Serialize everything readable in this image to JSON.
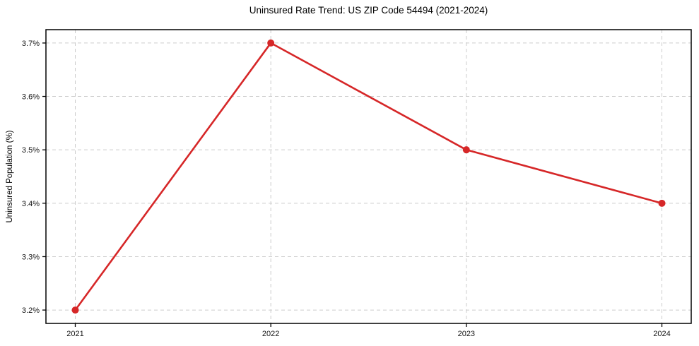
{
  "chart_data": {
    "type": "line",
    "title": "Uninsured Rate Trend: US ZIP Code 54494 (2021-2024)",
    "xlabel": "",
    "ylabel": "Uninsured Population (%)",
    "x": [
      2021,
      2022,
      2023,
      2024
    ],
    "values": [
      3.2,
      3.7,
      3.5,
      3.4
    ],
    "xtick_labels": [
      "2021",
      "2022",
      "2023",
      "2024"
    ],
    "ytick_values": [
      3.2,
      3.3,
      3.4,
      3.5,
      3.6,
      3.7
    ],
    "ytick_labels": [
      "3.2%",
      "3.3%",
      "3.4%",
      "3.5%",
      "3.6%",
      "3.7%"
    ],
    "xlim": [
      2020.85,
      2024.15
    ],
    "ylim": [
      3.175,
      3.725
    ],
    "grid": true,
    "legend_position": "none",
    "line_color": "#d62728",
    "marker": "circle",
    "grid_color": "#cccccc",
    "axis_color": "#000000"
  }
}
